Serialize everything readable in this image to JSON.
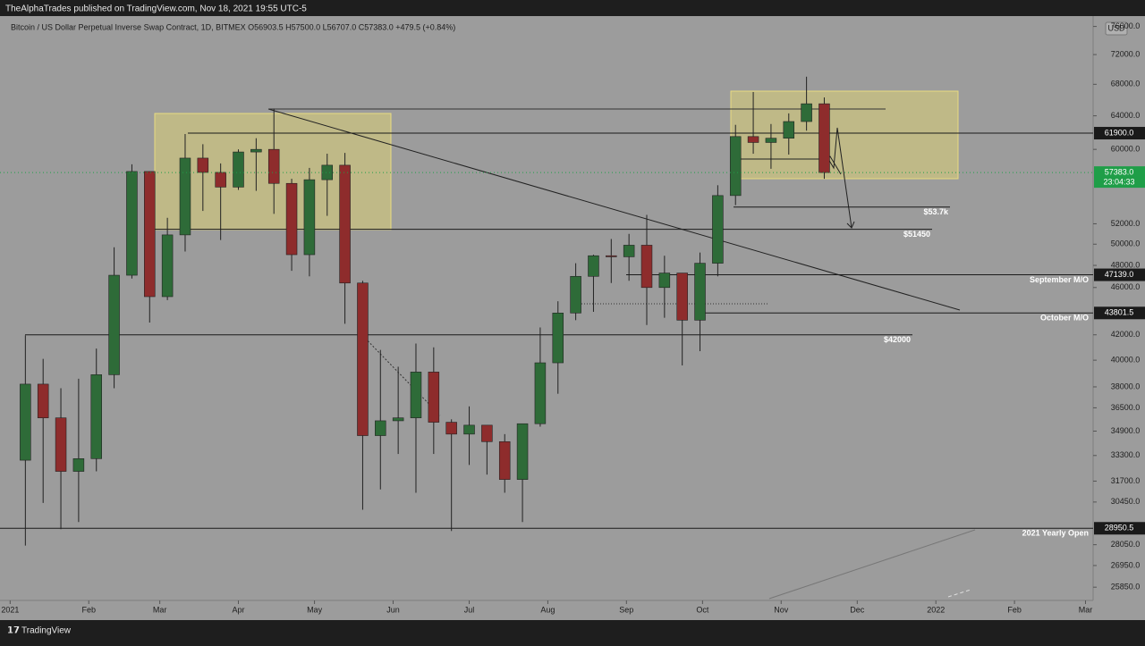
{
  "header": {
    "publisher": "TheAlphaTrades published on TradingView.com, Nov 18, 2021 19:55 UTC-5"
  },
  "chart_data": {
    "type": "candlestick",
    "title": "Bitcoin / US Dollar Perpetual Inverse Swap Contract, 1D, BITMEX  O56903.5  H57500.0  L56707.0  C57383.0  +479.5 (+0.84%)",
    "currency": "USD",
    "x": [
      "2021-01-04",
      "2021-01-11",
      "2021-01-18",
      "2021-01-25",
      "2021-02-01",
      "2021-02-08",
      "2021-02-15",
      "2021-02-22",
      "2021-03-01",
      "2021-03-08",
      "2021-03-15",
      "2021-03-22",
      "2021-03-29",
      "2021-04-05",
      "2021-04-12",
      "2021-04-19",
      "2021-04-26",
      "2021-05-03",
      "2021-05-10",
      "2021-05-17",
      "2021-05-24",
      "2021-05-31",
      "2021-06-07",
      "2021-06-14",
      "2021-06-21",
      "2021-06-28",
      "2021-07-05",
      "2021-07-12",
      "2021-07-19",
      "2021-07-26",
      "2021-08-02",
      "2021-08-09",
      "2021-08-16",
      "2021-08-23",
      "2021-08-30",
      "2021-09-06",
      "2021-09-13",
      "2021-09-20",
      "2021-09-27",
      "2021-10-04",
      "2021-10-11",
      "2021-10-18",
      "2021-10-25",
      "2021-11-01",
      "2021-11-08",
      "2021-11-15"
    ],
    "open": [
      33000,
      38200,
      35800,
      32300,
      33100,
      38900,
      47100,
      57500,
      45200,
      50900,
      59000,
      57400,
      55800,
      59700,
      60000,
      56200,
      49000,
      56600,
      58200,
      46400,
      34600,
      35600,
      35800,
      39100,
      35500,
      34700,
      35300,
      34200,
      31800,
      35400,
      39800,
      43800,
      47000,
      48900,
      48800,
      49900,
      46000,
      47300,
      43200,
      48200,
      54900,
      61500,
      60800,
      61300,
      63300,
      65500
    ],
    "high": [
      41950,
      40100,
      37900,
      38600,
      40900,
      49700,
      58300,
      57500,
      52600,
      61800,
      60600,
      58400,
      60000,
      61300,
      64900,
      56700,
      57900,
      59500,
      59600,
      46600,
      40800,
      39500,
      41300,
      41000,
      35700,
      36600,
      35300,
      34700,
      35400,
      42600,
      44800,
      48200,
      49000,
      50500,
      51000,
      52900,
      48900,
      47300,
      49200,
      56000,
      62900,
      67000,
      63000,
      64300,
      69000,
      66300
    ],
    "low": [
      28000,
      30400,
      28900,
      29300,
      32300,
      37900,
      46800,
      43000,
      44900,
      49300,
      53300,
      50400,
      55500,
      55400,
      53000,
      47500,
      47000,
      52800,
      42900,
      30000,
      31200,
      33400,
      31000,
      33400,
      28800,
      32700,
      32100,
      31000,
      29300,
      35200,
      37500,
      43200,
      43900,
      46400,
      46600,
      42800,
      43400,
      39600,
      40700,
      47000,
      53900,
      59500,
      57800,
      59400,
      62200,
      56700
    ],
    "close": [
      38200,
      35800,
      32300,
      33100,
      38900,
      47100,
      57500,
      45200,
      50900,
      59000,
      57400,
      55800,
      59700,
      60000,
      56200,
      49000,
      56600,
      58200,
      46400,
      34600,
      35600,
      35800,
      39100,
      35500,
      34700,
      35300,
      34200,
      31800,
      35400,
      39800,
      43800,
      47000,
      48900,
      48800,
      49900,
      46000,
      47300,
      43200,
      48200,
      54900,
      61500,
      60800,
      61300,
      63300,
      65500,
      57383
    ],
    "up_color": "#2e6b38",
    "down_color": "#8e2c2c",
    "ylim": [
      25200,
      77000
    ],
    "log_scale": true,
    "grid": false,
    "yticks": [
      {
        "value": 76000,
        "label": "76000.0"
      },
      {
        "value": 72000,
        "label": "72000.0"
      },
      {
        "value": 68000,
        "label": "68000.0"
      },
      {
        "value": 64000,
        "label": "64000.0"
      },
      {
        "value": 60000,
        "label": "60000.0"
      },
      {
        "value": 52000,
        "label": "52000.0"
      },
      {
        "value": 50000,
        "label": "50000.0"
      },
      {
        "value": 48000,
        "label": "48000.0"
      },
      {
        "value": 46000,
        "label": "46000.0"
      },
      {
        "value": 42000,
        "label": "42000.0"
      },
      {
        "value": 40000,
        "label": "40000.0"
      },
      {
        "value": 38000,
        "label": "38000.0"
      },
      {
        "value": 36500,
        "label": "36500.0"
      },
      {
        "value": 34900,
        "label": "34900.0"
      },
      {
        "value": 33300,
        "label": "33300.0"
      },
      {
        "value": 31700,
        "label": "31700.0"
      },
      {
        "value": 30450,
        "label": "30450.0"
      },
      {
        "value": 28050,
        "label": "28050.0"
      },
      {
        "value": 26950,
        "label": "26950.0"
      },
      {
        "value": 25850,
        "label": "25850.0"
      }
    ],
    "xlim": [
      "2020-12-28",
      "2022-03-04"
    ],
    "xticks": [
      {
        "value": "2021-01-01",
        "label": "2021"
      },
      {
        "value": "2021-02-01",
        "label": "Feb"
      },
      {
        "value": "2021-03-01",
        "label": "Mar"
      },
      {
        "value": "2021-04-01",
        "label": "Apr"
      },
      {
        "value": "2021-05-01",
        "label": "May"
      },
      {
        "value": "2021-06-01",
        "label": "Jun"
      },
      {
        "value": "2021-07-01",
        "label": "Jul"
      },
      {
        "value": "2021-08-01",
        "label": "Aug"
      },
      {
        "value": "2021-09-01",
        "label": "Sep"
      },
      {
        "value": "2021-10-01",
        "label": "Oct"
      },
      {
        "value": "2021-11-01",
        "label": "Nov"
      },
      {
        "value": "2021-12-01",
        "label": "Dec"
      },
      {
        "value": "2022-01-01",
        "label": "2022"
      },
      {
        "value": "2022-02-01",
        "label": "Feb"
      },
      {
        "value": "2022-03-01",
        "label": "Mar"
      }
    ],
    "levels": [
      {
        "value": 61900,
        "label": "61900.0"
      },
      {
        "value": 53700,
        "text": "$53.7k"
      },
      {
        "value": 51450,
        "text": "$51450"
      },
      {
        "value": 47139,
        "label": "47139.0",
        "text": "September M/O"
      },
      {
        "value": 43801.5,
        "label": "43801.5",
        "text": "October M/O"
      },
      {
        "value": 42000,
        "text": "$42000"
      },
      {
        "value": 28950.5,
        "label": "28950.5",
        "text": "2021 Yearly Open"
      }
    ],
    "current_price": {
      "value": 57383,
      "label": "57383.0",
      "countdown": "23:04:33",
      "color": "#1f9e48"
    }
  },
  "footer": {
    "brand": "TradingView"
  }
}
